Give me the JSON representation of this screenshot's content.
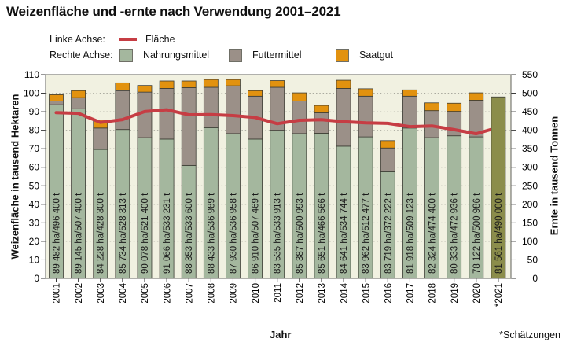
{
  "title": "Weizenfläche und -ernte nach Verwendung 2001–2021",
  "legend": {
    "left_axis_label": "Linke Achse:",
    "left_series": "Fläche",
    "right_axis_label": "Rechte Achse:",
    "right_series": [
      "Nahrungsmittel",
      "Futtermittel",
      "Saatgut"
    ]
  },
  "footnote": "*Schätzungen",
  "chart_data": {
    "type": "bar",
    "subtype": "stacked-bars-with-line-overlay",
    "categories": [
      "2001",
      "2002",
      "2003",
      "2004",
      "2005",
      "2006",
      "2007",
      "2008",
      "2009",
      "2010",
      "2011",
      "2012",
      "2013",
      "2014",
      "2015",
      "2016",
      "2017",
      "2018",
      "2019",
      "2020",
      "*2021"
    ],
    "bar_unit": "tausend Tonnen",
    "series": [
      {
        "name": "Nahrungsmittel",
        "axis": "right",
        "values": [
          469,
          458,
          348,
          402,
          380,
          376,
          305,
          407,
          391,
          376,
          400,
          391,
          392,
          357,
          382,
          288,
          406,
          380,
          385,
          382,
          null
        ]
      },
      {
        "name": "Futtermittel",
        "axis": "right",
        "values": [
          10,
          30,
          58,
          105,
          123,
          137,
          210,
          109,
          129,
          116,
          116,
          88,
          55,
          156,
          110,
          64,
          86,
          73,
          66,
          99,
          null
        ]
      },
      {
        "name": "Saatgut",
        "axis": "right",
        "values": [
          17,
          19,
          22,
          21,
          18,
          20,
          18,
          21,
          17,
          15,
          18,
          22,
          20,
          22,
          20,
          20,
          17,
          21,
          22,
          20,
          null
        ]
      }
    ],
    "estimate_bar": {
      "category": "*2021",
      "total": 490,
      "note": "Schätzung, einfarbiger Balken"
    },
    "line_series": {
      "name": "Fläche",
      "axis": "left",
      "unit": "tausend Hektaren",
      "values": [
        89.482,
        89.145,
        84.228,
        85.734,
        90.078,
        91.066,
        88.353,
        88.433,
        87.93,
        86.91,
        83.535,
        85.387,
        85.651,
        84.641,
        83.962,
        83.719,
        81.918,
        82.324,
        80.333,
        78.122,
        81.561
      ]
    },
    "bar_labels": [
      "89 482 ha/496 400 t",
      "89 145 ha/507 400 t",
      "84 228 ha/428 300 t",
      "85 734 ha/528 313 t",
      "90 078 ha/521 400 t",
      "91 066 ha/533 231 t",
      "88 353 ha/533 600 t",
      "88 433 ha/536 989 t",
      "87 930 ha/536 958 t",
      "86 910 ha/507 469 t",
      "83 535 ha/533 913 t",
      "85 387 ha/500 993 t",
      "85 651 ha/466 566 t",
      "84 641 ha/534 744 t",
      "83 962 ha/512 477 t",
      "83 719 ha/372 222 t",
      "81 918 ha/509 123 t",
      "82 324 ha/474 400 t",
      "80 333 ha/472 936 t",
      "78 122 ha/500 986 t",
      "81 561 ha/490 000 t"
    ],
    "left_axis": {
      "label": "Weizenfläche in tausend Hektaren",
      "min": 0,
      "max": 110,
      "step": 10
    },
    "right_axis": {
      "label": "Ernte in tausend Tonnen",
      "min": 0,
      "max": 550,
      "step": 50
    },
    "x_label": "Jahr",
    "grid": true,
    "legend_position": "top-left",
    "colors": {
      "food": "#a4b79e",
      "feed": "#9b9088",
      "seed": "#e2920f",
      "estimate": "#8b8d4b",
      "line": "#c63d44",
      "plot_bg": "#f1f1e1",
      "grid": "#a9a99e",
      "bar_border": "#3c3c34",
      "plot_border": "#60605a"
    }
  }
}
